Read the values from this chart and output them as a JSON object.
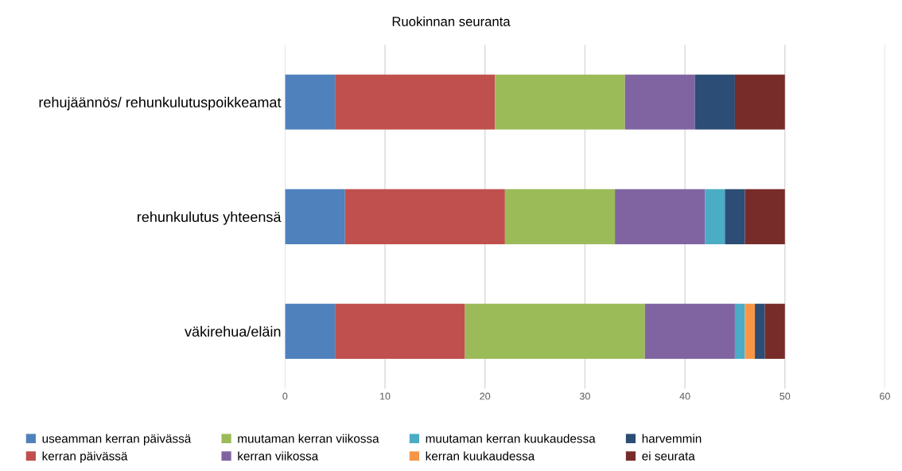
{
  "chart_data": {
    "type": "bar",
    "orientation": "horizontal",
    "stacked": true,
    "title": "Ruokinnan seuranta",
    "categories": [
      "rehujäännös/ rehunkulutuspoikkeamat",
      "rehunkulutus yhteensä",
      "väkirehua/eläin"
    ],
    "series": [
      {
        "name": "useamman kerran päivässä",
        "color": "#4f81bd",
        "values": [
          5,
          6,
          5
        ]
      },
      {
        "name": "kerran päivässä",
        "color": "#c0504d",
        "values": [
          16,
          16,
          13
        ]
      },
      {
        "name": "muutaman kerran viikossa",
        "color": "#9bbb59",
        "values": [
          13,
          11,
          18
        ]
      },
      {
        "name": "kerran viikossa",
        "color": "#8064a2",
        "values": [
          7,
          9,
          9
        ]
      },
      {
        "name": "muutaman kerran kuukaudessa",
        "color": "#4bacc6",
        "values": [
          0,
          2,
          1
        ]
      },
      {
        "name": "kerran kuukaudessa",
        "color": "#f79646",
        "values": [
          0,
          0,
          1
        ]
      },
      {
        "name": "harvemmin",
        "color": "#2c4d75",
        "values": [
          4,
          2,
          1
        ]
      },
      {
        "name": "ei seurata",
        "color": "#772c2a",
        "values": [
          5,
          4,
          2
        ]
      }
    ],
    "xlim": [
      0,
      60
    ],
    "xticks": [
      0,
      10,
      20,
      30,
      40,
      50,
      60
    ],
    "grid": "x",
    "legend": "bottom"
  }
}
